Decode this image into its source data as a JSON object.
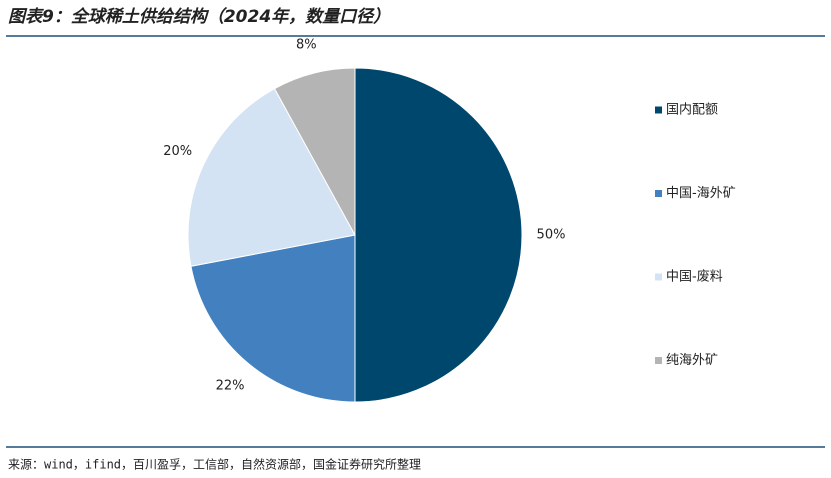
{
  "chart_data": {
    "type": "pie",
    "title": "图表9：全球稀土供给结构（2024年，数量口径）",
    "categories": [
      "国内配额",
      "中国-海外矿",
      "中国-废料",
      "纯海外矿"
    ],
    "values": [
      50,
      22,
      20,
      8
    ],
    "value_labels": [
      "50%",
      "22%",
      "20%",
      "8%"
    ],
    "colors": [
      "#00476e",
      "#4280bf",
      "#d3e3f3",
      "#b4b4b4"
    ],
    "legend": "right"
  },
  "source": "来源：wind，ifind，百川盈孚，工信部，自然资源部，国金证券研究所整理"
}
